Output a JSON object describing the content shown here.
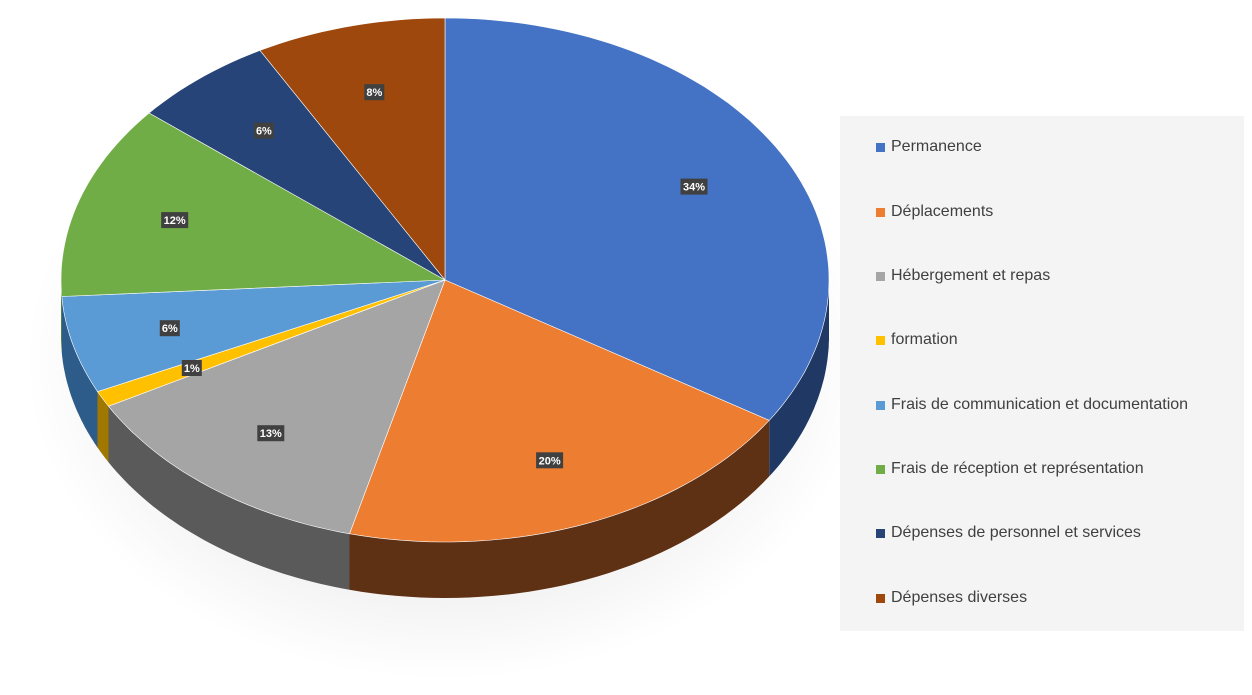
{
  "chart_data": {
    "type": "pie",
    "style": "3d",
    "title": "",
    "categories": [
      "Permanence",
      "Déplacements",
      "Hébergement et repas",
      "formation",
      "Frais de communication et documentation",
      "Frais de réception et représentation",
      "Dépenses de personnel et services",
      "Dépenses diverses"
    ],
    "values": [
      34,
      20,
      13,
      1,
      6,
      12,
      6,
      8
    ],
    "labels": [
      "34%",
      "20%",
      "13%",
      "1%",
      "6%",
      "12%",
      "6%",
      "8%"
    ],
    "colors": [
      "#4472C4",
      "#ED7D31",
      "#A5A5A5",
      "#FFC000",
      "#5B9BD5",
      "#70AD47",
      "#264478",
      "#9E480E"
    ],
    "side_colors": [
      "#1F3864",
      "#5E3014",
      "#5A5A5A",
      "#A07800",
      "#2E5C8A",
      "#3F6E26",
      "#15264A",
      "#5E2A08"
    ],
    "legend_position": "right"
  }
}
